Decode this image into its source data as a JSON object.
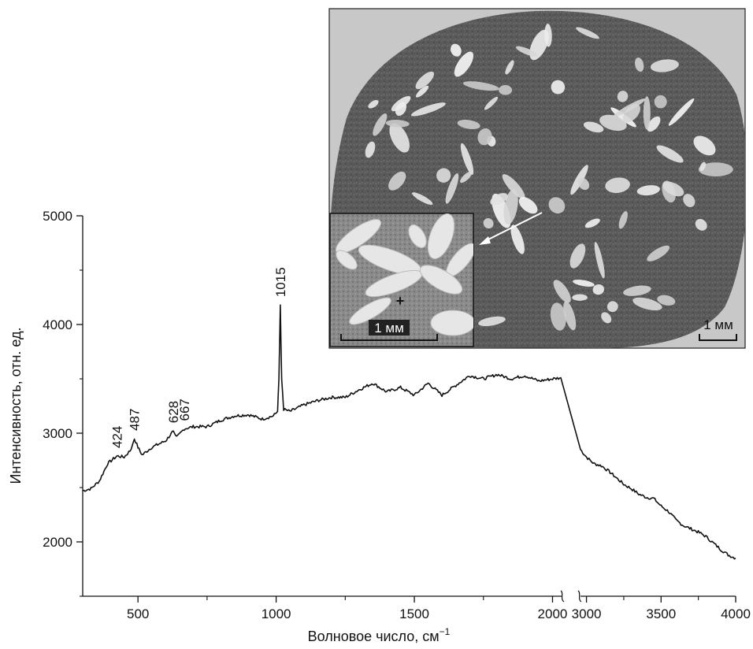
{
  "chart_data": {
    "type": "line",
    "xlabel": "Волновое число, см",
    "xlabel_sup": "−1",
    "ylabel": "Интенсивность, отн. ед.",
    "ylim": [
      1500,
      5000
    ],
    "y_ticks": [
      2000,
      3000,
      4000,
      5000
    ],
    "x_ticks_segment1": [
      500,
      1000,
      1500,
      2000
    ],
    "x_ticks_segment2": [
      3000,
      3500,
      4000
    ],
    "x_break": true,
    "xlim_segment1": [
      300,
      2030
    ],
    "xlim_segment2": [
      2960,
      4000
    ],
    "peak_labels": [
      {
        "x": 424,
        "text": "424"
      },
      {
        "x": 487,
        "text": "487"
      },
      {
        "x": 628,
        "text": "628"
      },
      {
        "x": 667,
        "text": "667"
      },
      {
        "x": 1015,
        "text": "1015"
      }
    ],
    "series": [
      {
        "points_segment1": [
          [
            300,
            2470
          ],
          [
            330,
            2490
          ],
          [
            360,
            2560
          ],
          [
            390,
            2720
          ],
          [
            424,
            2790
          ],
          [
            450,
            2780
          ],
          [
            475,
            2850
          ],
          [
            487,
            2950
          ],
          [
            500,
            2870
          ],
          [
            515,
            2800
          ],
          [
            550,
            2870
          ],
          [
            600,
            2930
          ],
          [
            628,
            3020
          ],
          [
            640,
            2960
          ],
          [
            667,
            3040
          ],
          [
            700,
            3060
          ],
          [
            750,
            3060
          ],
          [
            800,
            3120
          ],
          [
            850,
            3160
          ],
          [
            900,
            3170
          ],
          [
            950,
            3130
          ],
          [
            990,
            3160
          ],
          [
            1005,
            3200
          ],
          [
            1010,
            3500
          ],
          [
            1015,
            4180
          ],
          [
            1020,
            3500
          ],
          [
            1027,
            3220
          ],
          [
            1050,
            3200
          ],
          [
            1100,
            3260
          ],
          [
            1150,
            3300
          ],
          [
            1200,
            3330
          ],
          [
            1250,
            3330
          ],
          [
            1300,
            3400
          ],
          [
            1350,
            3460
          ],
          [
            1400,
            3380
          ],
          [
            1450,
            3420
          ],
          [
            1500,
            3350
          ],
          [
            1550,
            3460
          ],
          [
            1600,
            3350
          ],
          [
            1650,
            3440
          ],
          [
            1700,
            3530
          ],
          [
            1750,
            3500
          ],
          [
            1800,
            3540
          ],
          [
            1850,
            3500
          ],
          [
            1900,
            3530
          ],
          [
            1950,
            3480
          ],
          [
            2000,
            3500
          ],
          [
            2030,
            3510
          ]
        ],
        "points_segment2": [
          [
            2960,
            2850
          ],
          [
            3000,
            2780
          ],
          [
            3050,
            2720
          ],
          [
            3100,
            2700
          ],
          [
            3150,
            2650
          ],
          [
            3200,
            2590
          ],
          [
            3250,
            2530
          ],
          [
            3300,
            2490
          ],
          [
            3350,
            2440
          ],
          [
            3400,
            2410
          ],
          [
            3450,
            2400
          ],
          [
            3500,
            2330
          ],
          [
            3550,
            2280
          ],
          [
            3600,
            2200
          ],
          [
            3650,
            2150
          ],
          [
            3700,
            2120
          ],
          [
            3750,
            2090
          ],
          [
            3800,
            2050
          ],
          [
            3850,
            1990
          ],
          [
            3900,
            1930
          ],
          [
            3950,
            1880
          ],
          [
            4000,
            1850
          ]
        ]
      }
    ]
  },
  "inset": {
    "scale_main": "1 мм",
    "scale_zoom": "1 мм",
    "marker": "+"
  }
}
